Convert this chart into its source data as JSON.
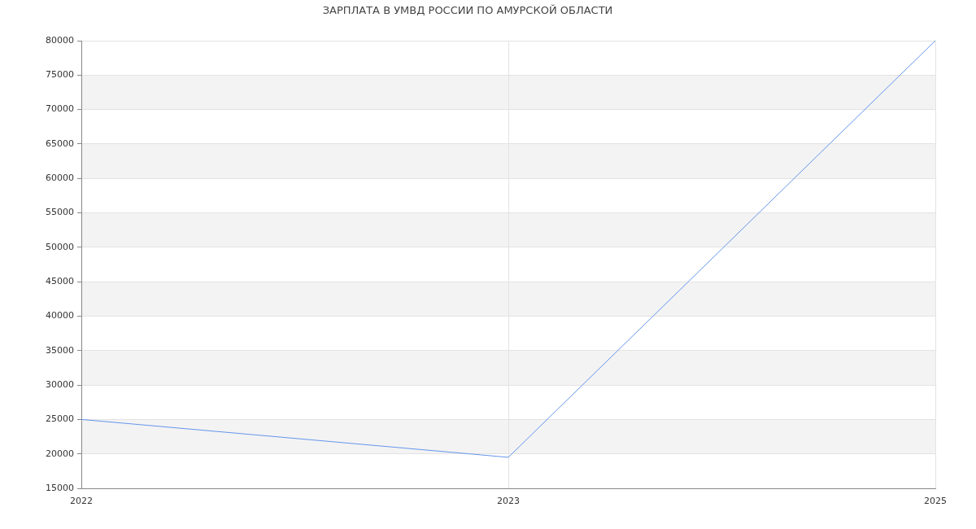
{
  "chart_data": {
    "type": "line",
    "title": "ЗАРПЛАТА В УМВД РОССИИ ПО АМУРСКОЙ ОБЛАСТИ",
    "categories": [
      "2022",
      "2023",
      "2025"
    ],
    "series": [
      {
        "color": "#6495ed",
        "values": [
          25000,
          19500,
          80000
        ]
      }
    ],
    "ylim": [
      15000,
      80000
    ],
    "yticks": [
      15000,
      20000,
      25000,
      30000,
      35000,
      40000,
      45000,
      50000,
      55000,
      60000,
      65000,
      70000,
      75000,
      80000
    ],
    "bands": [
      {
        "axis": "y",
        "from": 20000,
        "to": 25000,
        "color": "#f3f3f3"
      },
      {
        "axis": "y",
        "from": 30000,
        "to": 35000,
        "color": "#f3f3f3"
      },
      {
        "axis": "y",
        "from": 40000,
        "to": 45000,
        "color": "#f3f3f3"
      },
      {
        "axis": "y",
        "from": 50000,
        "to": 55000,
        "color": "#f3f3f3"
      },
      {
        "axis": "y",
        "from": 60000,
        "to": 65000,
        "color": "#f3f3f3"
      },
      {
        "axis": "y",
        "from": 70000,
        "to": 75000,
        "color": "#f3f3f3"
      }
    ],
    "grid": true
  }
}
